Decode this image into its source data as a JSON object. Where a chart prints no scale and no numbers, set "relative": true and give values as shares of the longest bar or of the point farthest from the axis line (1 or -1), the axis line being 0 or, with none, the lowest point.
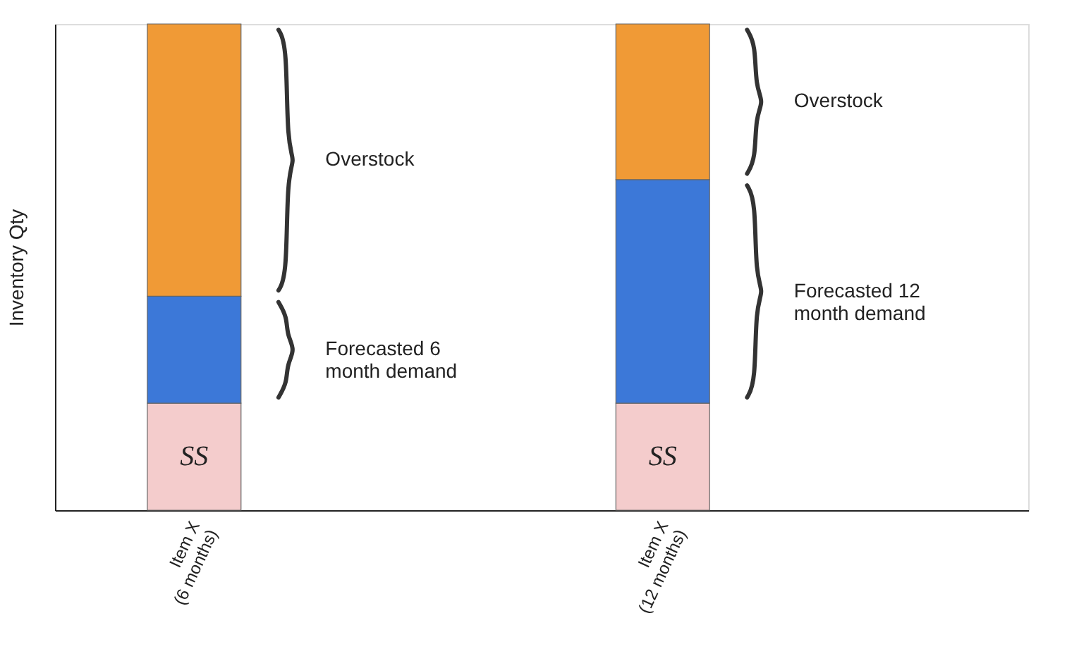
{
  "chart_data": {
    "type": "bar",
    "stacked": true,
    "relative": true,
    "ylabel": "Inventory Qty",
    "categories": [
      "Item X\n(6 months)",
      "Item X\n(12 months)"
    ],
    "series": [
      {
        "name": "SS",
        "color": "#f4cccc",
        "values": [
          0.22,
          0.22
        ]
      },
      {
        "color": "#3c78d8",
        "values": [
          0.22,
          0.46
        ]
      },
      {
        "color": "#f09a36",
        "values": [
          0.56,
          0.32
        ]
      }
    ],
    "annotations": [
      "Overstock",
      "Forecasted 6\nmonth demand",
      "Overstock",
      "Forecasted 12\nmonth demand"
    ],
    "grid": false,
    "legend": false,
    "tick_labels": "x"
  }
}
